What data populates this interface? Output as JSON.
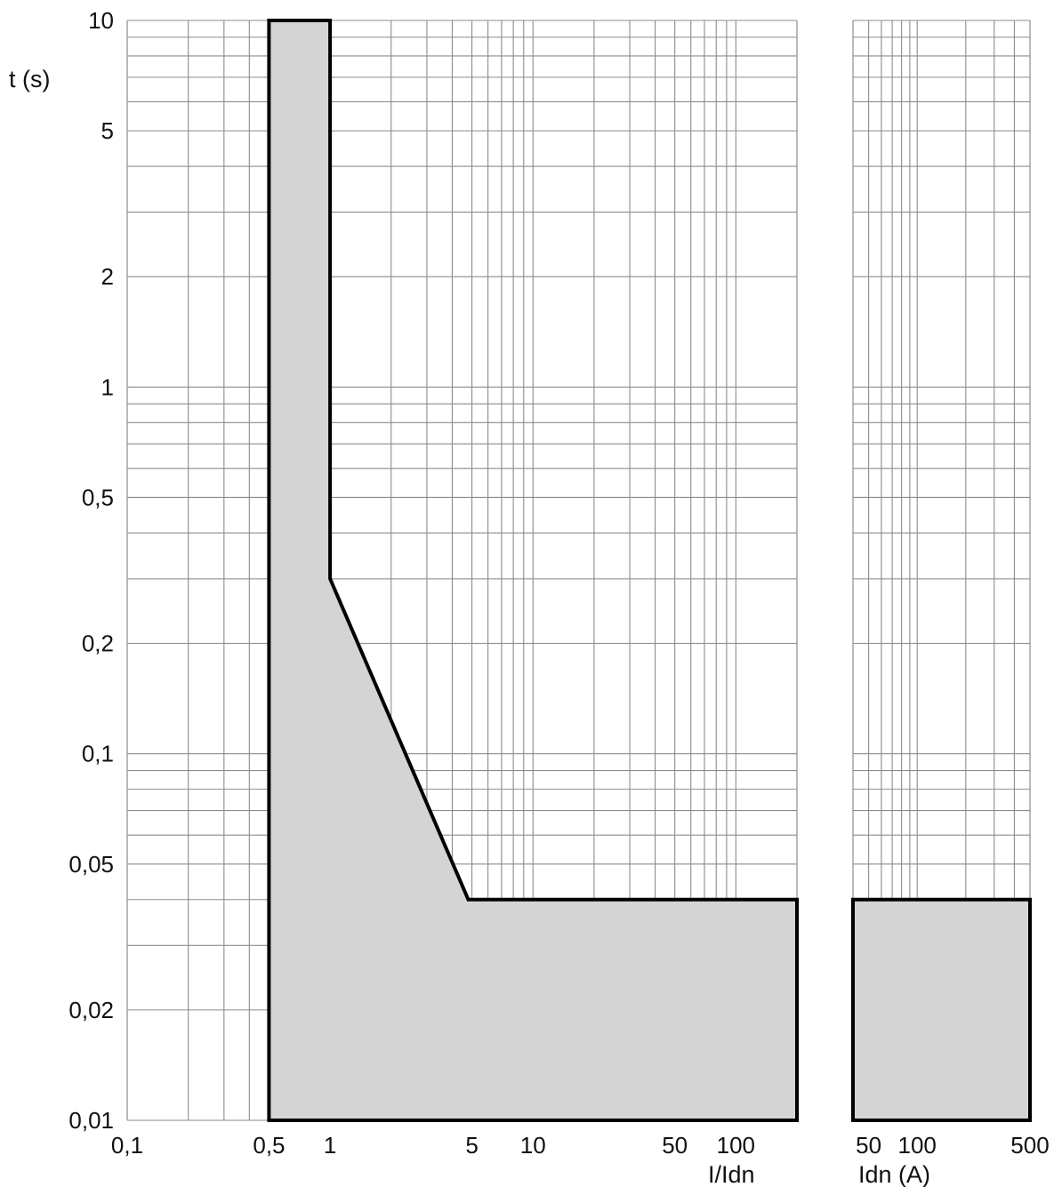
{
  "chart_data": [
    {
      "type": "area",
      "name": "left-panel",
      "xlabel": "I/Idn",
      "ylabel": "t (s)",
      "x_scale": "log",
      "y_scale": "log",
      "xlim": [
        0.1,
        200
      ],
      "ylim": [
        0.01,
        10
      ],
      "grid": true,
      "x_tick_labels": [
        {
          "value": 0.1,
          "label": "0,1"
        },
        {
          "value": 0.5,
          "label": "0,5"
        },
        {
          "value": 1,
          "label": "1"
        },
        {
          "value": 5,
          "label": "5"
        },
        {
          "value": 10,
          "label": "10"
        },
        {
          "value": 50,
          "label": "50"
        },
        {
          "value": 100,
          "label": "100"
        }
      ],
      "y_tick_labels": [
        {
          "value": 10,
          "label": "10"
        },
        {
          "value": 5,
          "label": "5"
        },
        {
          "value": 2,
          "label": "2"
        },
        {
          "value": 1,
          "label": "1"
        },
        {
          "value": 0.5,
          "label": "0,5"
        },
        {
          "value": 0.2,
          "label": "0,2"
        },
        {
          "value": 0.1,
          "label": "0,1"
        },
        {
          "value": 0.05,
          "label": "0,05"
        },
        {
          "value": 0.02,
          "label": "0,02"
        },
        {
          "value": 0.01,
          "label": "0,01"
        }
      ],
      "region": [
        {
          "x": 0.5,
          "y": 0.01
        },
        {
          "x": 0.5,
          "y": 10
        },
        {
          "x": 1,
          "y": 10
        },
        {
          "x": 1,
          "y": 0.3
        },
        {
          "x": 4.8,
          "y": 0.04
        },
        {
          "x": 200,
          "y": 0.04
        },
        {
          "x": 200,
          "y": 0.01
        }
      ]
    },
    {
      "type": "area",
      "name": "right-panel",
      "xlabel": "Idn (A)",
      "x_scale": "log",
      "y_scale": "log",
      "xlim": [
        40,
        500
      ],
      "ylim": [
        0.01,
        10
      ],
      "grid": true,
      "x_tick_labels": [
        {
          "value": 50,
          "label": "50"
        },
        {
          "value": 100,
          "label": "100"
        },
        {
          "value": 500,
          "label": "500"
        }
      ],
      "region": [
        {
          "x": 40,
          "y": 0.01
        },
        {
          "x": 40,
          "y": 0.04
        },
        {
          "x": 500,
          "y": 0.04
        },
        {
          "x": 500,
          "y": 0.01
        }
      ]
    }
  ],
  "colors": {
    "fill": "#d4d4d4",
    "outline": "#000000",
    "grid": "#8c8c8c"
  }
}
